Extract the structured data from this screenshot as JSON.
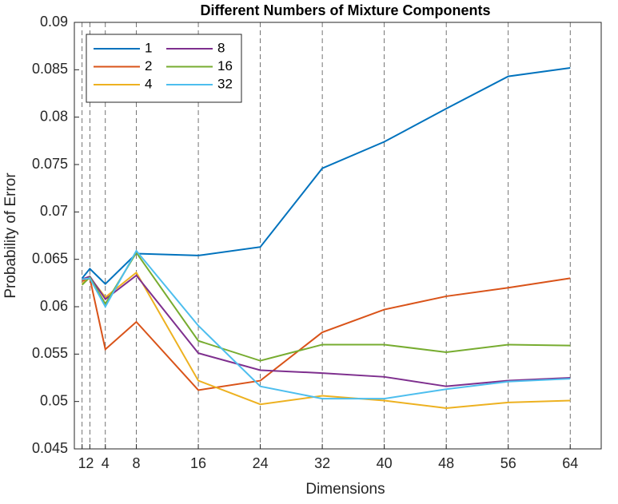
{
  "chart_data": {
    "type": "line",
    "title": "Different Numbers of Mixture Components",
    "xlabel": "Dimensions",
    "ylabel": "Probability of Error",
    "x": [
      1,
      2,
      4,
      8,
      16,
      24,
      32,
      40,
      48,
      56,
      64
    ],
    "series": [
      {
        "name": "1",
        "color": "#0072BD",
        "values": [
          0.063,
          0.064,
          0.0624,
          0.0656,
          0.0654,
          0.0663,
          0.0746,
          0.0774,
          0.0809,
          0.0843,
          0.0852
        ]
      },
      {
        "name": "2",
        "color": "#D95319",
        "values": [
          0.0627,
          0.063,
          0.0555,
          0.0584,
          0.0512,
          0.0522,
          0.0573,
          0.0597,
          0.0611,
          0.062,
          0.063
        ]
      },
      {
        "name": "4",
        "color": "#EDB120",
        "values": [
          0.0624,
          0.0631,
          0.061,
          0.0636,
          0.0522,
          0.0497,
          0.0506,
          0.0501,
          0.0493,
          0.0499,
          0.0501
        ]
      },
      {
        "name": "8",
        "color": "#7E2F8E",
        "values": [
          0.0629,
          0.0632,
          0.0608,
          0.0633,
          0.0551,
          0.0533,
          0.053,
          0.0526,
          0.0516,
          0.0522,
          0.0525
        ]
      },
      {
        "name": "16",
        "color": "#77AC30",
        "values": [
          0.0623,
          0.0631,
          0.0603,
          0.0657,
          0.0564,
          0.0543,
          0.056,
          0.056,
          0.0552,
          0.056,
          0.0559
        ]
      },
      {
        "name": "32",
        "color": "#4DBEEE",
        "values": [
          0.0629,
          0.063,
          0.06,
          0.0659,
          0.058,
          0.0516,
          0.0503,
          0.0503,
          0.0513,
          0.0521,
          0.0524
        ]
      }
    ],
    "xlim": [
      0,
      68
    ],
    "xticks": [
      1,
      2,
      4,
      8,
      16,
      24,
      32,
      40,
      48,
      56,
      64
    ],
    "ylim": [
      0.045,
      0.09
    ],
    "yticks": [
      0.045,
      0.05,
      0.055,
      0.06,
      0.065,
      0.07,
      0.075,
      0.08,
      0.085,
      0.09
    ],
    "xgrid": true,
    "legend_location": "northwest",
    "legend_columns": 2
  }
}
